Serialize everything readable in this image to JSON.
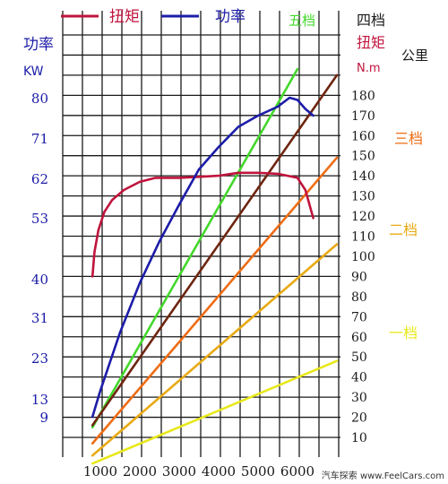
{
  "chart_data": {
    "type": "line",
    "legend": [
      {
        "label": "扭矩",
        "color": "#c0143c"
      },
      {
        "label": "功率",
        "color": "#1c1ca8"
      }
    ],
    "x_ticks": [
      "1000",
      "2000",
      "3000",
      "4000",
      "5000",
      "6000"
    ],
    "xlim": [
      500,
      7000
    ],
    "left_axis": {
      "title": "功率",
      "unit": "KW",
      "ticks": [
        "9",
        "13",
        "23",
        "31",
        "40",
        "53",
        "62",
        "71",
        "80"
      ]
    },
    "right_axis": {
      "title": "扭矩",
      "unit": "N.m",
      "ticks": [
        "10",
        "20",
        "30",
        "40",
        "50",
        "60",
        "70",
        "80",
        "90",
        "100",
        "110",
        "120",
        "130",
        "140",
        "150",
        "160",
        "170",
        "180"
      ]
    },
    "speed_axis_label": "公里",
    "grid": true,
    "series": [
      {
        "name": "扭矩",
        "axis": "right",
        "color": "#c0143c",
        "x": [
          800,
          850,
          950,
          1100,
          1300,
          1600,
          2000,
          2400,
          3000,
          3500,
          4000,
          4500,
          5000,
          5500,
          6000,
          6200,
          6400
        ],
        "y": [
          90,
          102,
          113,
          122,
          128,
          133,
          137,
          139,
          139,
          139.5,
          140,
          141.5,
          141.5,
          141,
          139,
          133,
          119
        ]
      },
      {
        "name": "功率",
        "axis": "left",
        "color": "#1c1ca8",
        "x": [
          800,
          1000,
          1500,
          2000,
          2500,
          3000,
          3500,
          4000,
          4500,
          5000,
          5500,
          5800,
          6000,
          6200,
          6400
        ],
        "y": [
          9,
          15,
          28,
          39,
          48,
          56,
          64,
          69,
          73.5,
          76,
          78,
          80,
          79.5,
          77.5,
          76
        ]
      }
    ],
    "gear_lines": [
      {
        "label": "五档",
        "color": "#44d82c",
        "from": [
          800,
          15
        ],
        "to": [
          6000,
          193
        ]
      },
      {
        "label": "四档",
        "color": "#6e2510",
        "from": [
          800,
          16
        ],
        "to": [
          7000,
          190
        ]
      },
      {
        "label": "三档",
        "color": "#ee6c14",
        "from": [
          800,
          7
        ],
        "to": [
          7000,
          149
        ]
      },
      {
        "label": "二档",
        "color": "#e8aa14",
        "from": [
          800,
          1
        ],
        "to": [
          7000,
          106
        ]
      },
      {
        "label": "一档",
        "color": "#e8e81a",
        "from": [
          800,
          -3
        ],
        "to": [
          7000,
          48
        ]
      }
    ]
  },
  "watermark": "汽车探索 www.FeelCars.com"
}
